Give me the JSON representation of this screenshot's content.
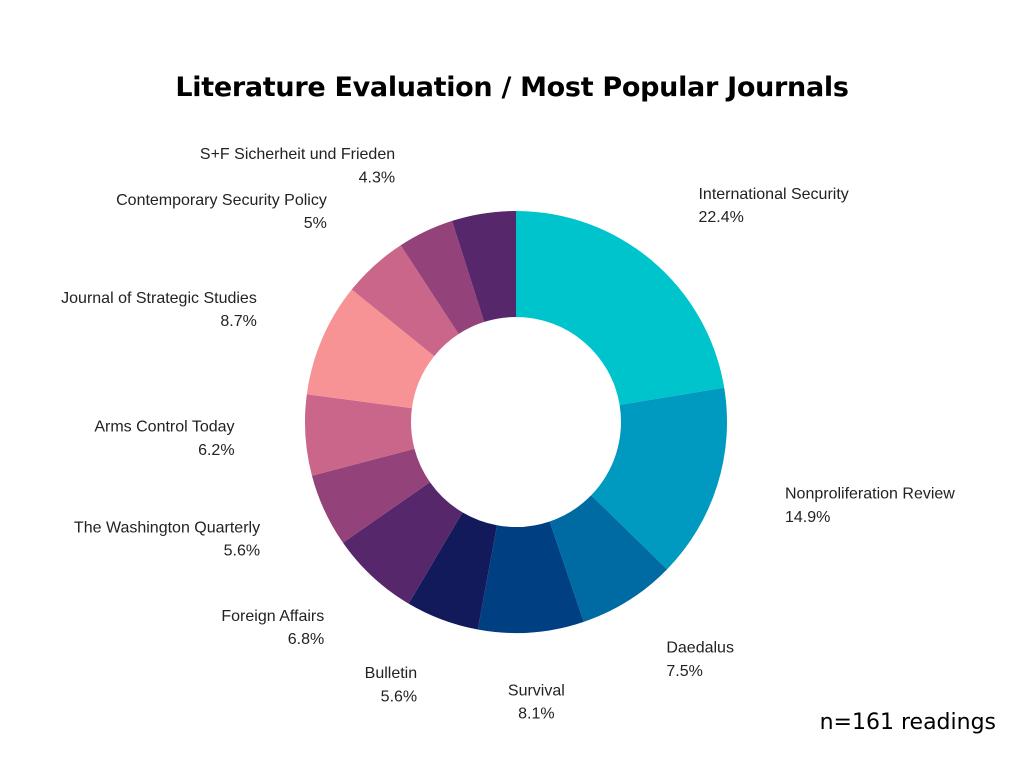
{
  "chart_data": {
    "type": "pie",
    "donut": true,
    "title": "Literature Evaluation / Most Popular Journals",
    "footnote": "n=161 readings",
    "slices": [
      {
        "name": "International Security",
        "value": 22.4,
        "value_label": "22.4%",
        "color": "#00c4cc"
      },
      {
        "name": "Nonproliferation Review",
        "value": 14.9,
        "value_label": "14.9%",
        "color": "#0099bf"
      },
      {
        "name": "Daedalus",
        "value": 7.5,
        "value_label": "7.5%",
        "color": "#006ba3"
      },
      {
        "name": "Survival",
        "value": 8.1,
        "value_label": "8.1%",
        "color": "#003f82"
      },
      {
        "name": "Bulletin",
        "value": 5.6,
        "value_label": "5.6%",
        "color": "#131a5c"
      },
      {
        "name": "Foreign Affairs",
        "value": 6.8,
        "value_label": "6.8%",
        "color": "#57276c"
      },
      {
        "name": "The Washington Quarterly",
        "value": 5.6,
        "value_label": "5.6%",
        "color": "#93437a"
      },
      {
        "name": "Arms Control Today",
        "value": 6.2,
        "value_label": "6.2%",
        "color": "#c9668a"
      },
      {
        "name": "Journal of Strategic Studies",
        "value": 8.7,
        "value_label": "8.7%",
        "color": "#f79295"
      },
      {
        "name": "Contemporary Security Policy",
        "value": 5,
        "value_label": "5%",
        "color": "#c9668a"
      },
      {
        "name": "S+F Sicherheit und Frieden",
        "value": 4.3,
        "value_label": "4.3%",
        "color": "#93437a"
      },
      {
        "name": "",
        "value": 4.9,
        "value_label": "",
        "color": "#57276c"
      }
    ]
  }
}
